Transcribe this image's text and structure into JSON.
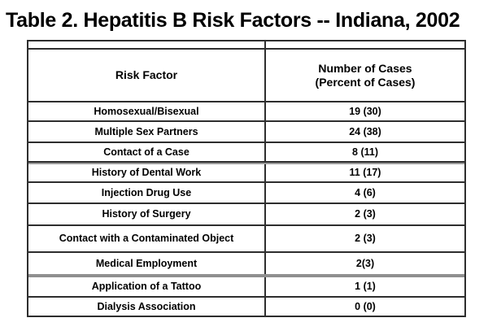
{
  "title": "Table 2. Hepatitis B Risk Factors -- Indiana, 2002",
  "colors": {
    "background": "#ffffff",
    "text": "#000000",
    "border": "#2e2e2e",
    "gray_divider": "#8f8f8f"
  },
  "table": {
    "header": {
      "col1": "Risk Factor",
      "col2_line1": "Number of Cases",
      "col2_line2": "(Percent of Cases)"
    }
  },
  "chart_data": {
    "type": "table",
    "title": "Table 2. Hepatitis B Risk Factors -- Indiana, 2002",
    "columns": [
      "Risk Factor",
      "Number of Cases (Percent of Cases)"
    ],
    "rows": [
      {
        "factor": "Homosexual/Bisexual",
        "display": "19 (30)",
        "count": 19,
        "percent": 30
      },
      {
        "factor": "Multiple Sex Partners",
        "display": "24 (38)",
        "count": 24,
        "percent": 38
      },
      {
        "factor": "Contact of a Case",
        "display": "8 (11)",
        "count": 8,
        "percent": 11
      },
      {
        "factor": "History of Dental Work",
        "display": "11 (17)",
        "count": 11,
        "percent": 17
      },
      {
        "factor": "Injection Drug Use",
        "display": "4 (6)",
        "count": 4,
        "percent": 6
      },
      {
        "factor": "History of Surgery",
        "display": "2 (3)",
        "count": 2,
        "percent": 3
      },
      {
        "factor": "Contact with a Contaminated Object",
        "display": "2 (3)",
        "count": 2,
        "percent": 3
      },
      {
        "factor": "Medical Employment",
        "display": "2(3)",
        "count": 2,
        "percent": 3
      },
      {
        "factor": "Application of a Tattoo",
        "display": "1 (1)",
        "count": 1,
        "percent": 1
      },
      {
        "factor": "Dialysis Association",
        "display": "0 (0)",
        "count": 0,
        "percent": 0
      }
    ]
  }
}
